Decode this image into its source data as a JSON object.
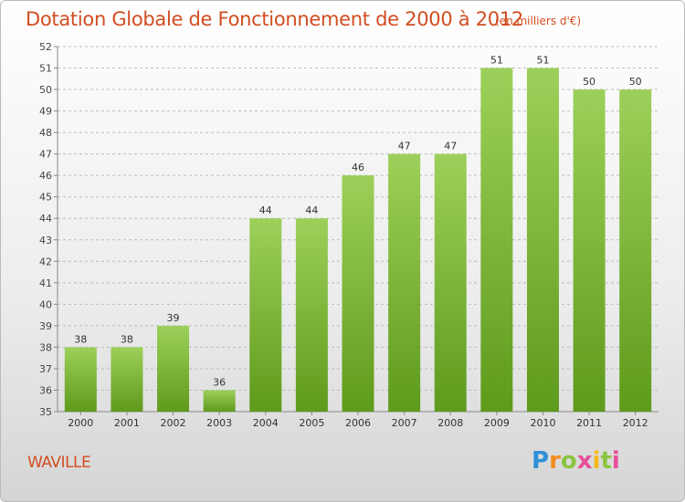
{
  "header": {
    "title": "Dotation Globale de Fonctionnement de 2000 à 2012",
    "unit": "(en milliers d'€)"
  },
  "footer": {
    "commune": "WAVILLE",
    "logo_letters": [
      "P",
      "r",
      "o",
      "x",
      "i",
      "t",
      "i"
    ]
  },
  "colors": {
    "title": "#d14d20",
    "bar_top": "#9dd05a",
    "bar_bottom": "#5e9a1c",
    "grid": "#bcbcbc",
    "axis": "#888888"
  },
  "chart_data": {
    "type": "bar",
    "title": "Dotation Globale de Fonctionnement de 2000 à 2012",
    "subtitle": "(en milliers d'€)",
    "xlabel": "",
    "ylabel": "",
    "categories": [
      "2000",
      "2001",
      "2002",
      "2003",
      "2004",
      "2005",
      "2006",
      "2007",
      "2008",
      "2009",
      "2010",
      "2011",
      "2012"
    ],
    "values": [
      38,
      38,
      39,
      36,
      44,
      44,
      46,
      47,
      47,
      51,
      51,
      50,
      50
    ],
    "ylim": [
      35,
      52
    ],
    "yticks": [
      35,
      36,
      37,
      38,
      39,
      40,
      41,
      42,
      43,
      44,
      45,
      46,
      47,
      48,
      49,
      50,
      51,
      52
    ],
    "grid": "horizontal dashed",
    "legend": "none",
    "data_labels": true
  }
}
